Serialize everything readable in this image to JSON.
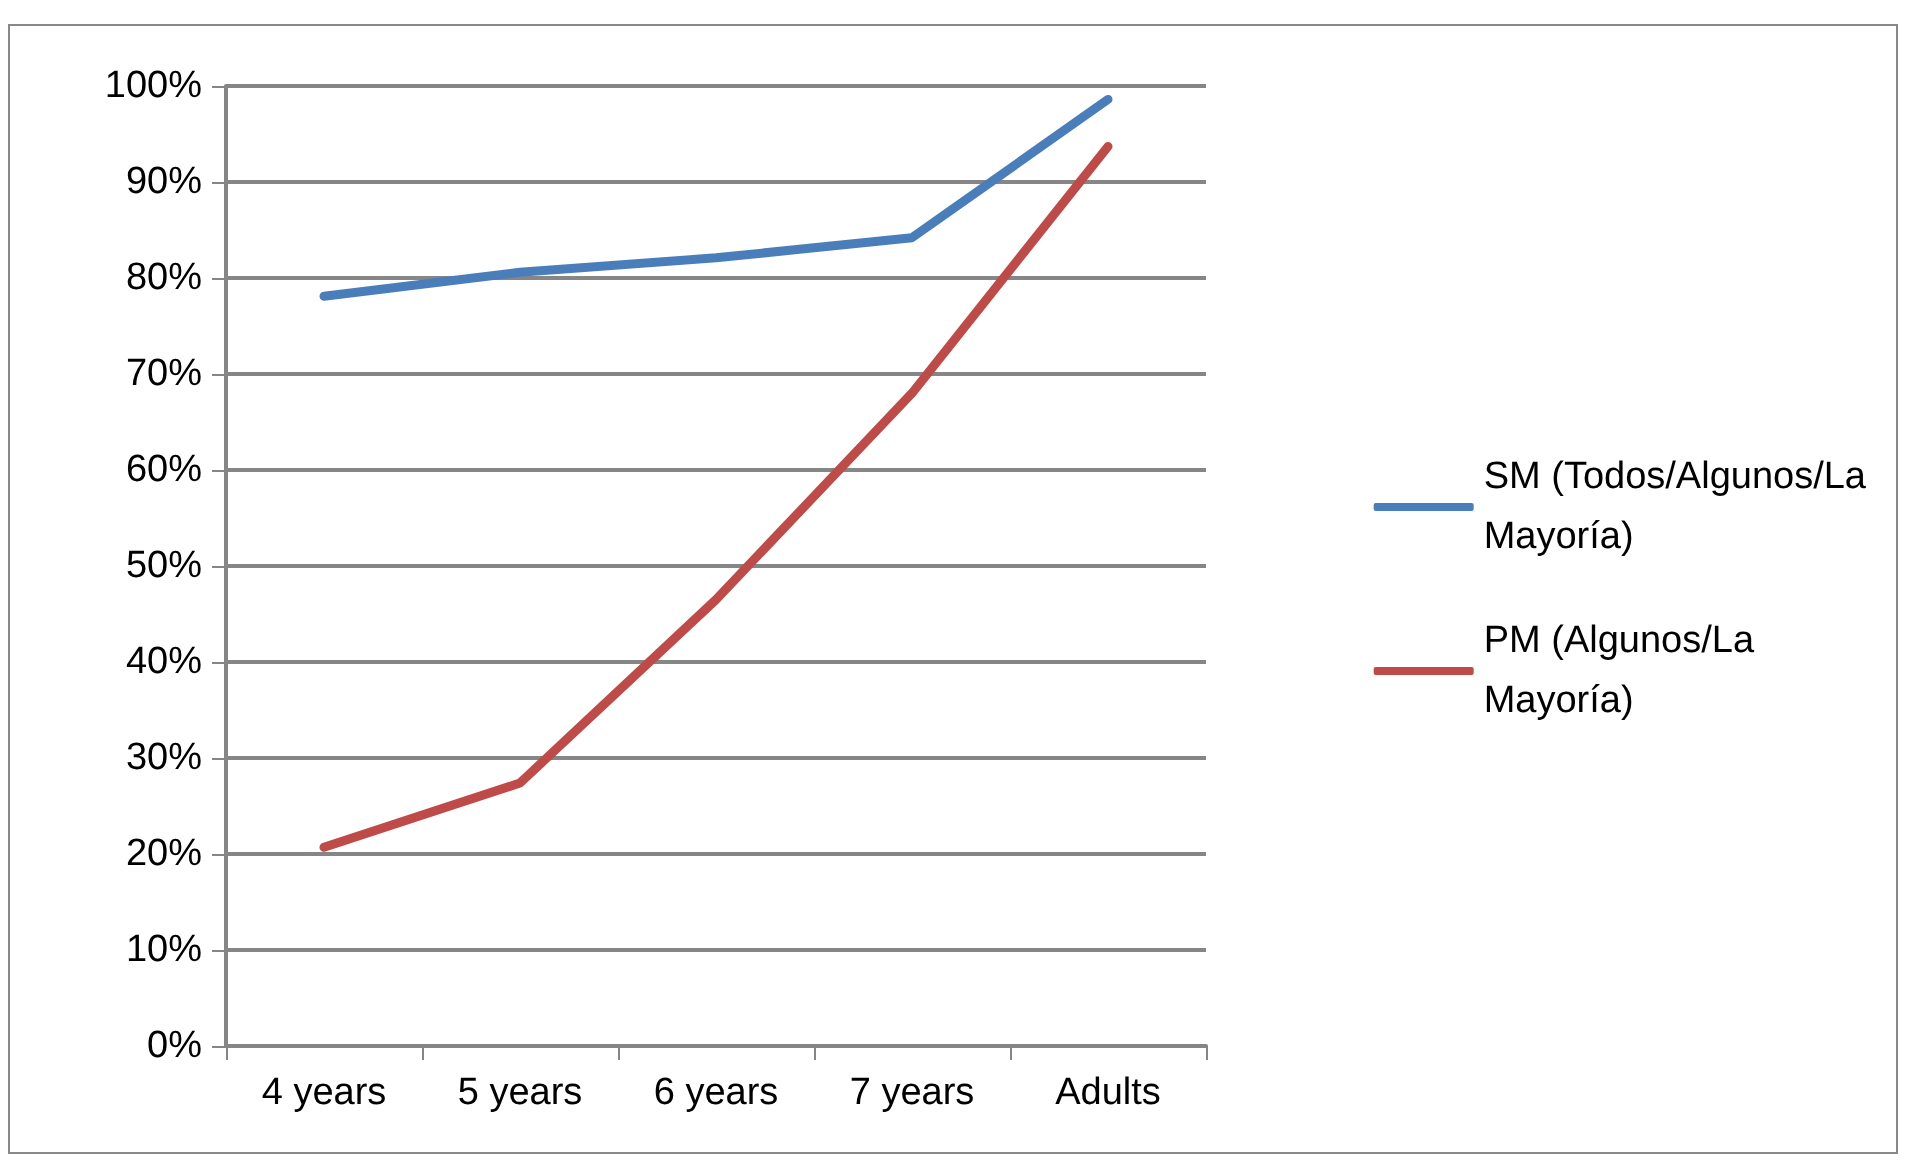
{
  "chart_data": {
    "type": "line",
    "categories": [
      "4 years",
      "5 years",
      "6 years",
      "7 years",
      "Adults"
    ],
    "series": [
      {
        "name": "SM (Todos/Algunos/La Mayoría)",
        "color": "#4a7ebb",
        "values": [
          78.1,
          80.6,
          82.1,
          84.2,
          98.6
        ]
      },
      {
        "name": "PM (Algunos/La Mayoría)",
        "color": "#be4b48",
        "values": [
          20.7,
          27.4,
          46.5,
          68.0,
          93.7
        ]
      }
    ],
    "ylim": [
      0,
      100
    ],
    "yticks": [
      {
        "value": 0,
        "label": "0%"
      },
      {
        "value": 10,
        "label": "10%"
      },
      {
        "value": 20,
        "label": "20%"
      },
      {
        "value": 30,
        "label": "30%"
      },
      {
        "value": 40,
        "label": "40%"
      },
      {
        "value": 50,
        "label": "50%"
      },
      {
        "value": 60,
        "label": "60%"
      },
      {
        "value": 70,
        "label": "70%"
      },
      {
        "value": 80,
        "label": "80%"
      },
      {
        "value": 90,
        "label": "90%"
      },
      {
        "value": 100,
        "label": "100%"
      }
    ],
    "grid": "y",
    "legend": "right",
    "marker": "none",
    "line_style": "solid"
  }
}
